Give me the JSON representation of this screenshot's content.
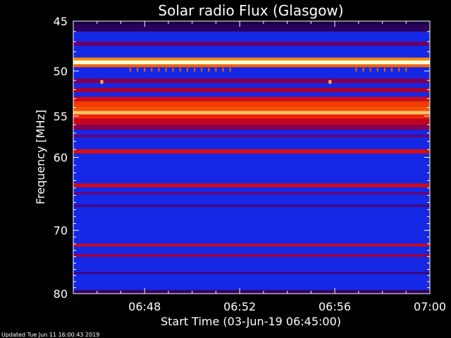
{
  "chart_data": {
    "type": "heatmap",
    "title": "Solar radio Flux (Glasgow)",
    "xlabel": "Start Time (03-Jun-19 06:45:00)",
    "ylabel": "Frequency [MHz]",
    "x_range": [
      "06:45",
      "07:00"
    ],
    "y_range": [
      45,
      80
    ],
    "x_ticks": [
      {
        "label": "06:48",
        "minute": 3
      },
      {
        "label": "06:52",
        "minute": 7
      },
      {
        "label": "06:56",
        "minute": 11
      },
      {
        "label": "07:00",
        "minute": 15
      }
    ],
    "y_ticks": [
      {
        "label": "45",
        "value": 45
      },
      {
        "label": "50",
        "value": 50
      },
      {
        "label": "55",
        "value": 55
      },
      {
        "label": "60",
        "value": 60
      },
      {
        "label": "70",
        "value": 70
      },
      {
        "label": "80",
        "value": 80
      }
    ],
    "background_color": "#1428e6",
    "bands": [
      {
        "freq_from": 45.0,
        "freq_to": 45.3,
        "level": 0.05
      },
      {
        "freq_from": 45.3,
        "freq_to": 46.0,
        "level": 0.12
      },
      {
        "freq_from": 47.0,
        "freq_to": 47.4,
        "level": 0.3
      },
      {
        "freq_from": 48.6,
        "freq_to": 48.9,
        "level": 0.85
      },
      {
        "freq_from": 48.9,
        "freq_to": 49.3,
        "level": 1.0
      },
      {
        "freq_from": 49.3,
        "freq_to": 49.6,
        "level": 0.8
      },
      {
        "freq_from": 50.8,
        "freq_to": 51.3,
        "level": 0.35
      },
      {
        "freq_from": 51.8,
        "freq_to": 52.3,
        "level": 0.45
      },
      {
        "freq_from": 52.8,
        "freq_to": 53.3,
        "level": 0.6
      },
      {
        "freq_from": 53.3,
        "freq_to": 53.9,
        "level": 0.75
      },
      {
        "freq_from": 53.9,
        "freq_to": 54.4,
        "level": 0.78
      },
      {
        "freq_from": 54.4,
        "freq_to": 54.8,
        "level": 0.92
      },
      {
        "freq_from": 54.8,
        "freq_to": 55.3,
        "level": 0.72
      },
      {
        "freq_from": 55.3,
        "freq_to": 56.0,
        "level": 0.55
      },
      {
        "freq_from": 56.0,
        "freq_to": 56.6,
        "level": 0.38
      },
      {
        "freq_from": 57.2,
        "freq_to": 57.5,
        "level": 0.3
      },
      {
        "freq_from": 59.0,
        "freq_to": 59.5,
        "level": 0.65
      },
      {
        "freq_from": 63.4,
        "freq_to": 63.9,
        "level": 0.6
      },
      {
        "freq_from": 64.6,
        "freq_to": 64.9,
        "level": 0.3
      },
      {
        "freq_from": 66.3,
        "freq_to": 66.6,
        "level": 0.22
      },
      {
        "freq_from": 72.0,
        "freq_to": 72.4,
        "level": 0.6
      },
      {
        "freq_from": 73.6,
        "freq_to": 74.0,
        "level": 0.45
      },
      {
        "freq_from": 76.4,
        "freq_to": 76.7,
        "level": 0.2
      },
      {
        "freq_from": 79.4,
        "freq_to": 80.0,
        "level": 0.15
      }
    ],
    "bursts": [
      {
        "minute": 1.2,
        "freq": 51.2,
        "level": 0.9
      },
      {
        "minute": 10.8,
        "freq": 51.2,
        "level": 0.9
      }
    ],
    "burst_ticks": {
      "freq": 49.9,
      "minutes": [
        2.4,
        2.7,
        3.0,
        3.3,
        3.6,
        3.9,
        4.2,
        4.5,
        4.8,
        5.1,
        5.4,
        5.7,
        6.0,
        6.3,
        6.6,
        11.9,
        12.2,
        12.5,
        12.8,
        13.1,
        13.4,
        13.7,
        14.0
      ]
    }
  },
  "footer": {
    "updated": "Updated Tue Jun 11 16:00:43 2019"
  }
}
